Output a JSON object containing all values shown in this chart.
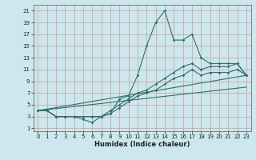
{
  "xlabel": "Humidex (Indice chaleur)",
  "background_color": "#cce8ee",
  "grid_color": "#cc9999",
  "line_color": "#2e6e6a",
  "xlim": [
    -0.5,
    23.5
  ],
  "ylim": [
    0.5,
    22
  ],
  "xticks": [
    0,
    1,
    2,
    3,
    4,
    5,
    6,
    7,
    8,
    9,
    10,
    11,
    12,
    13,
    14,
    15,
    16,
    17,
    18,
    19,
    20,
    21,
    22,
    23
  ],
  "yticks": [
    1,
    3,
    5,
    7,
    9,
    11,
    13,
    15,
    17,
    19,
    21
  ],
  "line1_x": [
    0,
    1,
    2,
    3,
    4,
    5,
    6,
    7,
    8,
    9,
    10,
    11,
    12,
    13,
    14,
    15,
    16,
    17,
    18,
    19,
    20,
    21,
    22,
    23
  ],
  "line1_y": [
    4,
    4,
    3,
    3,
    3,
    2.5,
    2,
    3,
    3.5,
    6,
    6.5,
    10,
    15,
    19,
    21,
    16,
    16,
    17,
    13,
    12,
    12,
    12,
    12,
    10
  ],
  "line2_x": [
    0,
    1,
    2,
    3,
    4,
    5,
    6,
    7,
    8,
    9,
    10,
    11,
    12,
    13,
    14,
    15,
    16,
    17,
    18,
    19,
    20,
    21,
    22,
    23
  ],
  "line2_y": [
    4,
    4,
    3,
    3,
    3,
    3,
    3,
    3,
    4,
    5,
    6,
    7,
    7.5,
    8.5,
    9.5,
    10.5,
    11.5,
    12,
    11,
    11.5,
    11.5,
    11.5,
    12,
    10
  ],
  "line3_x": [
    0,
    1,
    2,
    3,
    4,
    5,
    6,
    7,
    8,
    9,
    10,
    11,
    12,
    13,
    14,
    15,
    16,
    17,
    18,
    19,
    20,
    21,
    22,
    23
  ],
  "line3_y": [
    4,
    4,
    3,
    3,
    3,
    3,
    3,
    3,
    3.5,
    4.5,
    5.5,
    6.5,
    7,
    7.5,
    8.5,
    9.5,
    10,
    11,
    10,
    10.5,
    10.5,
    10.5,
    11,
    10
  ],
  "line4_x": [
    0,
    23
  ],
  "line4_y": [
    4,
    10
  ],
  "line5_x": [
    0,
    23
  ],
  "line5_y": [
    4,
    8
  ]
}
